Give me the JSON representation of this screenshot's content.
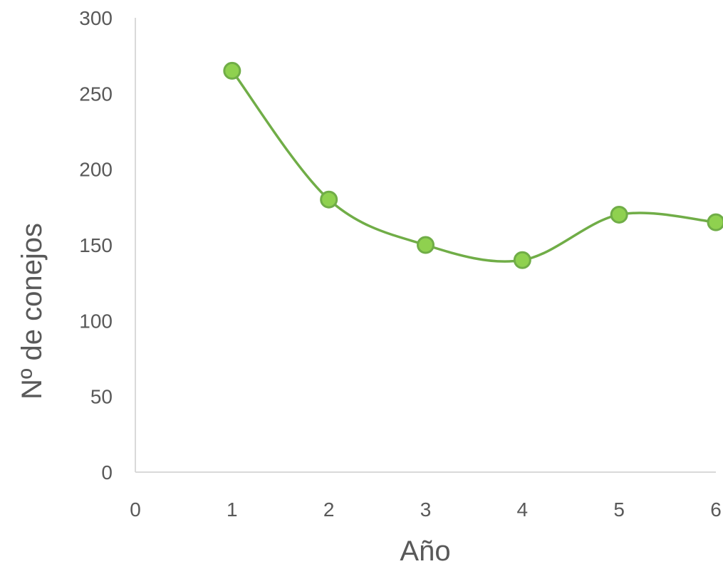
{
  "chart_data": {
    "type": "line",
    "smooth": true,
    "markers": true,
    "title": "",
    "xlabel": "Año",
    "ylabel": "Nº de conejos",
    "xlim": [
      0,
      6
    ],
    "ylim": [
      0,
      300
    ],
    "x_ticks": [
      "0",
      "1",
      "2",
      "3",
      "4",
      "5",
      "6"
    ],
    "y_ticks": [
      "0",
      "50",
      "100",
      "150",
      "200",
      "250",
      "300"
    ],
    "grid": false,
    "legend": "none",
    "line_color": "#70ad47",
    "marker_fill": "#8fd14f",
    "series": [
      {
        "x": [
          1,
          2,
          3,
          4,
          5,
          6
        ],
        "values": [
          265,
          180,
          150,
          140,
          170,
          165
        ]
      }
    ]
  }
}
